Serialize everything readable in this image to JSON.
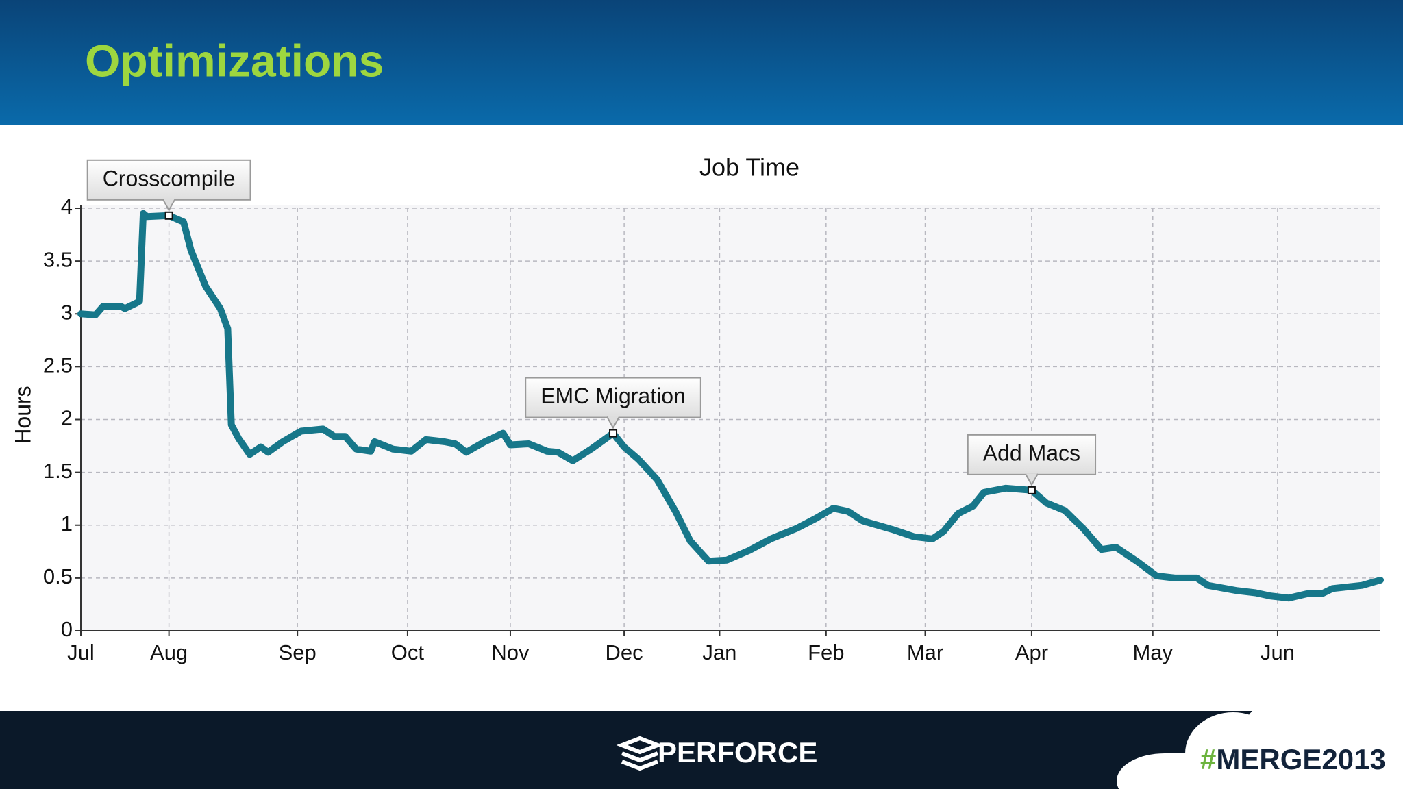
{
  "slide": {
    "title": "Optimizations",
    "brand": "PERFORCE",
    "hashtag_mark": "#",
    "hashtag_text": "MERGE2013"
  },
  "chart_data": {
    "type": "line",
    "title": "Job Time",
    "y_label": "Hours",
    "color": "#17778a",
    "grid": true,
    "xlim": [
      0,
      354
    ],
    "ylim": [
      0,
      4
    ],
    "xticks": [
      {
        "value": 0,
        "label": "Jul"
      },
      {
        "value": 24,
        "label": "Aug"
      },
      {
        "value": 59,
        "label": "Sep"
      },
      {
        "value": 89,
        "label": "Oct"
      },
      {
        "value": 117,
        "label": "Nov"
      },
      {
        "value": 148,
        "label": "Dec"
      },
      {
        "value": 174,
        "label": "Jan"
      },
      {
        "value": 203,
        "label": "Feb"
      },
      {
        "value": 230,
        "label": "Mar"
      },
      {
        "value": 259,
        "label": "Apr"
      },
      {
        "value": 292,
        "label": "May"
      },
      {
        "value": 326,
        "label": "Jun"
      }
    ],
    "yticks": [
      0,
      0.5,
      1,
      1.5,
      2,
      2.5,
      3,
      3.5,
      4
    ],
    "x": [
      0,
      4,
      6,
      11,
      12,
      15,
      16,
      17,
      18,
      24,
      28,
      30,
      34,
      38,
      40,
      41,
      43,
      46,
      49,
      51,
      55,
      60,
      66,
      69,
      72,
      75,
      79,
      80,
      85,
      90,
      94,
      99,
      102,
      105,
      110,
      115,
      117,
      122,
      127,
      130,
      134,
      139,
      145,
      148,
      152,
      157,
      162,
      166,
      171,
      176,
      182,
      188,
      195,
      200,
      205,
      209,
      213,
      221,
      227,
      232,
      235,
      239,
      243,
      246,
      252,
      259,
      263,
      268,
      273,
      278,
      282,
      288,
      293,
      298,
      304,
      307,
      315,
      320,
      324,
      329,
      334,
      338,
      341,
      349,
      354
    ],
    "values": [
      3.0,
      2.99,
      3.07,
      3.07,
      3.05,
      3.1,
      3.12,
      3.95,
      3.92,
      3.93,
      3.87,
      3.6,
      3.26,
      3.05,
      2.86,
      1.95,
      1.82,
      1.67,
      1.74,
      1.69,
      1.79,
      1.89,
      1.91,
      1.84,
      1.84,
      1.72,
      1.7,
      1.79,
      1.72,
      1.7,
      1.81,
      1.79,
      1.77,
      1.69,
      1.79,
      1.87,
      1.76,
      1.77,
      1.7,
      1.69,
      1.61,
      1.72,
      1.87,
      1.74,
      1.62,
      1.43,
      1.13,
      0.85,
      0.66,
      0.67,
      0.76,
      0.87,
      0.97,
      1.06,
      1.16,
      1.13,
      1.04,
      0.96,
      0.89,
      0.87,
      0.94,
      1.11,
      1.18,
      1.31,
      1.35,
      1.33,
      1.21,
      1.14,
      0.97,
      0.77,
      0.79,
      0.65,
      0.52,
      0.5,
      0.5,
      0.43,
      0.38,
      0.36,
      0.33,
      0.31,
      0.35,
      0.35,
      0.4,
      0.43,
      0.48
    ],
    "annotations": [
      {
        "text": "Crosscompile",
        "x": 24,
        "y": 3.93
      },
      {
        "text": "EMC Migration",
        "x": 145,
        "y": 1.87
      },
      {
        "text": "Add Macs",
        "x": 259,
        "y": 1.33
      }
    ]
  }
}
